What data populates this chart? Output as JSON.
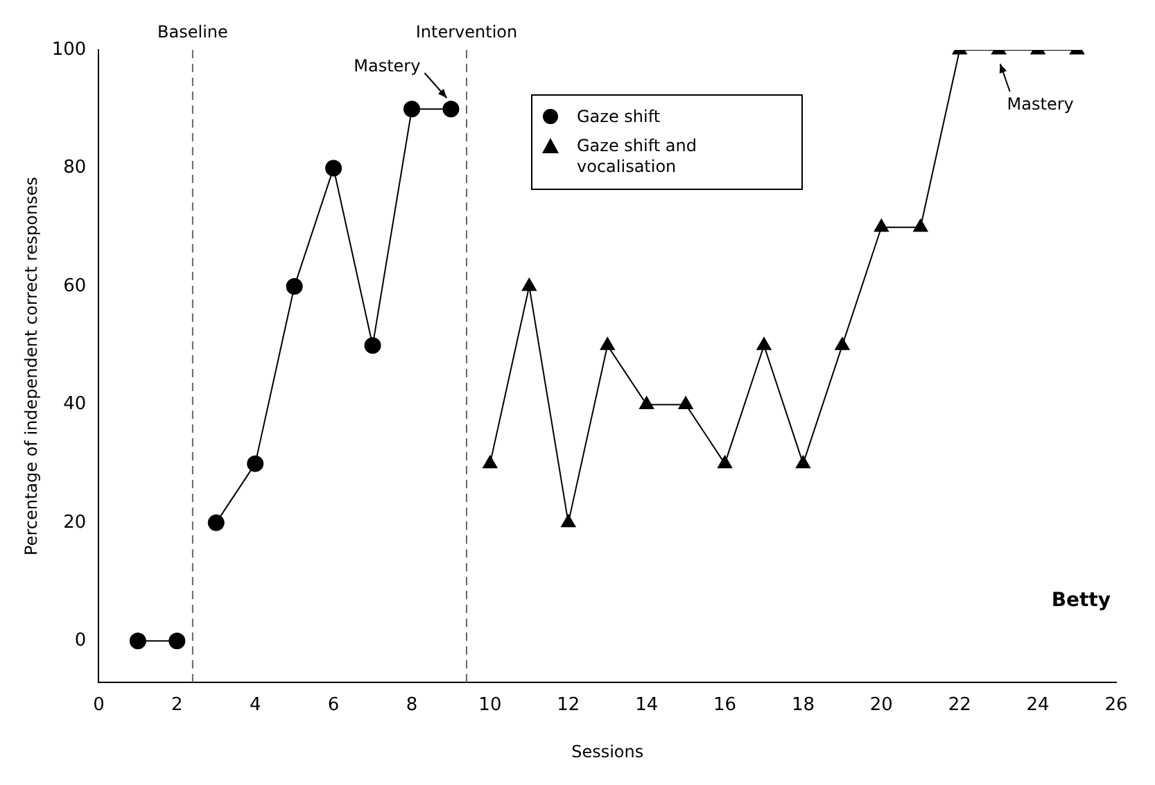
{
  "chart_data": {
    "type": "line",
    "xlabel": "Sessions",
    "ylabel": "Percentage of independent correct responses",
    "series": [
      {
        "color": "#000000",
        "marker": "circle",
        "x": [
          1,
          2
        ],
        "values": [
          0,
          0
        ]
      },
      {
        "name": "Gaze shift",
        "color": "#000000",
        "marker": "circle",
        "x": [
          3,
          4,
          5,
          6,
          7,
          8,
          9
        ],
        "values": [
          20,
          30,
          60,
          80,
          50,
          90,
          90
        ]
      },
      {
        "name": "Gaze shift and vocalisation",
        "color": "#000000",
        "marker": "triangle",
        "x": [
          10,
          11,
          12,
          13,
          14,
          15,
          16,
          17,
          18,
          19,
          20,
          21,
          22,
          23,
          24,
          25
        ],
        "values": [
          30,
          60,
          20,
          50,
          40,
          40,
          30,
          50,
          30,
          50,
          70,
          70,
          100,
          100,
          100,
          100
        ]
      }
    ],
    "xlim": [
      0,
      26
    ],
    "xticks": [
      0,
      2,
      4,
      6,
      8,
      10,
      12,
      14,
      16,
      18,
      20,
      22,
      24,
      26
    ],
    "ylim": [
      -7,
      100
    ],
    "yticks": [
      0,
      20,
      40,
      60,
      80,
      100
    ],
    "ref_lines": [
      {
        "axis": "x",
        "value": 2.4,
        "label": "Baseline",
        "color": "#666666",
        "line_style": "dashed"
      },
      {
        "axis": "x",
        "value": 9.4,
        "label": "Intervention",
        "color": "#666666",
        "line_style": "dashed"
      }
    ],
    "annotations": [
      {
        "text": "Mastery",
        "x": 9,
        "y": 90
      },
      {
        "text": "Mastery",
        "x": 23,
        "y": 100
      },
      "Betty"
    ],
    "legend": "top",
    "grid": false,
    "line_style": "solid"
  }
}
